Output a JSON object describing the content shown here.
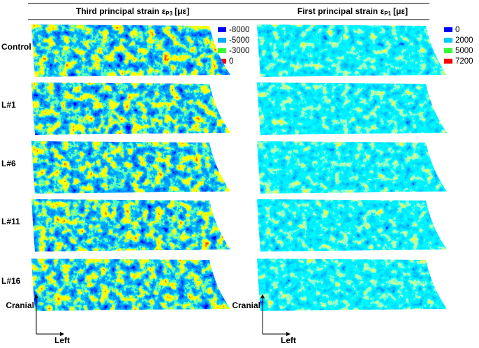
{
  "columns": [
    {
      "title": "Third principal strain ε",
      "subscript": "P3",
      "unit": "[με]",
      "legend": [
        {
          "label": "-8000",
          "color": "#0000ff"
        },
        {
          "label": "-5000",
          "color": "#00aaff"
        },
        {
          "label": "-3000",
          "color": "#33ff33"
        },
        {
          "label": "0",
          "color": "#ff0000"
        }
      ]
    },
    {
      "title": "First principal strain ε",
      "subscript": "P1",
      "unit": "[με]",
      "legend": [
        {
          "label": "0",
          "color": "#0000ff"
        },
        {
          "label": "2000",
          "color": "#00ccff"
        },
        {
          "label": "5000",
          "color": "#33ff33"
        },
        {
          "label": "7200",
          "color": "#ff0000"
        }
      ]
    }
  ],
  "rows": [
    "Control",
    "L#1",
    "L#6",
    "L#11",
    "L#16"
  ],
  "axes": {
    "vertical": "Cranial",
    "horizontal": "Left"
  }
}
